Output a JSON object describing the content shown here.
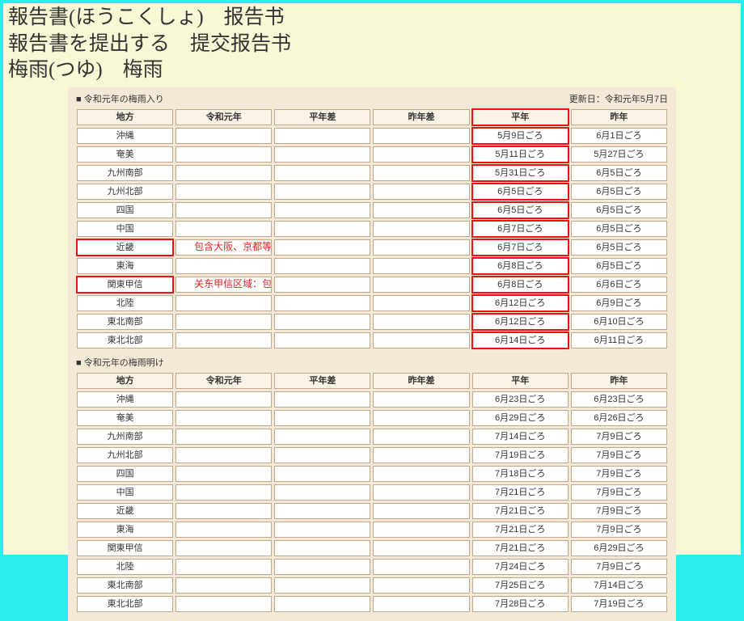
{
  "vocab": {
    "line1": "報告書(ほうこくしょ)　报告书",
    "line2": "報告書を提出する　提交报告书",
    "line3": "梅雨(つゆ)　梅雨"
  },
  "table1": {
    "title_left": "令和元年の梅雨入り",
    "title_right": "更新日：令和元年5月7日",
    "headers": [
      "地方",
      "令和元年",
      "平年差",
      "昨年差",
      "平年",
      "昨年"
    ],
    "rows": [
      {
        "region": "沖縄",
        "r": "",
        "pd": "",
        "yd": "",
        "avg": "5月9日ごろ",
        "ly": "6月1日ごろ"
      },
      {
        "region": "奄美",
        "r": "",
        "pd": "",
        "yd": "",
        "avg": "5月11日ごろ",
        "ly": "5月27日ごろ"
      },
      {
        "region": "九州南部",
        "r": "",
        "pd": "",
        "yd": "",
        "avg": "5月31日ごろ",
        "ly": "6月5日ごろ"
      },
      {
        "region": "九州北部",
        "r": "",
        "pd": "",
        "yd": "",
        "avg": "6月5日ごろ",
        "ly": "6月5日ごろ"
      },
      {
        "region": "四国",
        "r": "",
        "pd": "",
        "yd": "",
        "avg": "6月5日ごろ",
        "ly": "6月5日ごろ"
      },
      {
        "region": "中国",
        "r": "",
        "pd": "",
        "yd": "",
        "avg": "6月7日ごろ",
        "ly": "6月5日ごろ"
      },
      {
        "region": "近畿",
        "r": "",
        "pd": "",
        "yd": "",
        "avg": "6月7日ごろ",
        "ly": "6月5日ごろ",
        "hl": true,
        "annot": "包含大阪、京都等城市"
      },
      {
        "region": "東海",
        "r": "",
        "pd": "",
        "yd": "",
        "avg": "6月8日ごろ",
        "ly": "6月5日ごろ"
      },
      {
        "region": "関東甲信",
        "r": "",
        "pd": "",
        "yd": "",
        "avg": "6月8日ごろ",
        "ly": "6月6日ごろ",
        "hl": true,
        "annot": "关东甲信区域：包括东京"
      },
      {
        "region": "北陸",
        "r": "",
        "pd": "",
        "yd": "",
        "avg": "6月12日ごろ",
        "ly": "6月9日ごろ"
      },
      {
        "region": "東北南部",
        "r": "",
        "pd": "",
        "yd": "",
        "avg": "6月12日ごろ",
        "ly": "6月10日ごろ"
      },
      {
        "region": "東北北部",
        "r": "",
        "pd": "",
        "yd": "",
        "avg": "6月14日ごろ",
        "ly": "6月11日ごろ"
      }
    ],
    "highlight_col": 4
  },
  "table2": {
    "title_left": "令和元年の梅雨明け",
    "title_right": "",
    "headers": [
      "地方",
      "令和元年",
      "平年差",
      "昨年差",
      "平年",
      "昨年"
    ],
    "rows": [
      {
        "region": "沖縄",
        "r": "",
        "pd": "",
        "yd": "",
        "avg": "6月23日ごろ",
        "ly": "6月23日ごろ"
      },
      {
        "region": "奄美",
        "r": "",
        "pd": "",
        "yd": "",
        "avg": "6月29日ごろ",
        "ly": "6月26日ごろ"
      },
      {
        "region": "九州南部",
        "r": "",
        "pd": "",
        "yd": "",
        "avg": "7月14日ごろ",
        "ly": "7月9日ごろ"
      },
      {
        "region": "九州北部",
        "r": "",
        "pd": "",
        "yd": "",
        "avg": "7月19日ごろ",
        "ly": "7月9日ごろ"
      },
      {
        "region": "四国",
        "r": "",
        "pd": "",
        "yd": "",
        "avg": "7月18日ごろ",
        "ly": "7月9日ごろ"
      },
      {
        "region": "中国",
        "r": "",
        "pd": "",
        "yd": "",
        "avg": "7月21日ごろ",
        "ly": "7月9日ごろ"
      },
      {
        "region": "近畿",
        "r": "",
        "pd": "",
        "yd": "",
        "avg": "7月21日ごろ",
        "ly": "7月9日ごろ"
      },
      {
        "region": "東海",
        "r": "",
        "pd": "",
        "yd": "",
        "avg": "7月21日ごろ",
        "ly": "7月9日ごろ"
      },
      {
        "region": "関東甲信",
        "r": "",
        "pd": "",
        "yd": "",
        "avg": "7月21日ごろ",
        "ly": "6月29日ごろ"
      },
      {
        "region": "北陸",
        "r": "",
        "pd": "",
        "yd": "",
        "avg": "7月24日ごろ",
        "ly": "7月9日ごろ"
      },
      {
        "region": "東北南部",
        "r": "",
        "pd": "",
        "yd": "",
        "avg": "7月25日ごろ",
        "ly": "7月14日ごろ"
      },
      {
        "region": "東北北部",
        "r": "",
        "pd": "",
        "yd": "",
        "avg": "7月28日ごろ",
        "ly": "7月19日ごろ"
      }
    ]
  },
  "colors": {
    "page_bg": "#f8f8d6",
    "outer_bg": "#2aeeee",
    "tables_bg": "#f4e9d7",
    "cell_border": "#bfa88a",
    "highlight": "#e11"
  }
}
